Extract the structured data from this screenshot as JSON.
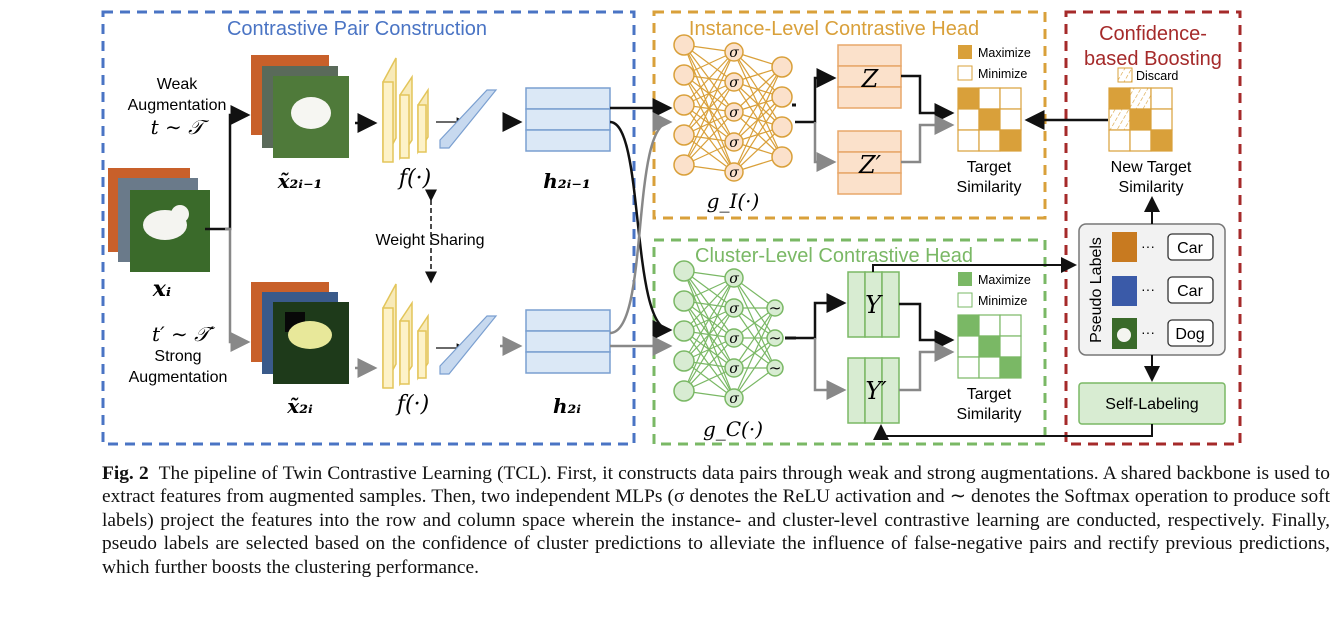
{
  "figure": {
    "sections": {
      "pair": "Contrastive Pair Construction",
      "instance": "Instance-Level Contrastive Head",
      "cluster": "Cluster-Level Contrastive Head",
      "boost_line1": "Confidence-",
      "boost_line2": "based Boosting"
    },
    "colors": {
      "pair": "#4a74c4",
      "instance": "#d9a03a",
      "cluster": "#7ab865",
      "boost": "#a52a2a",
      "encoder": "#f8eab8",
      "feature": "#dbe8f6",
      "inst_fill": "#fbe1cb",
      "clu_fill": "#d8ecd2"
    },
    "labels": {
      "weak1": "Weak",
      "weak2": "Augmentation",
      "weak_t": "t ∼ 𝒯",
      "strong_t": "t′ ∼ 𝒯′",
      "strong1": "Strong",
      "strong2": "Augmentation",
      "xi": "xᵢ",
      "x_weak": "x̃₂ᵢ₋₁",
      "x_strong": "x̃₂ᵢ",
      "f": "f(·)",
      "h_weak": "h₂ᵢ₋₁",
      "h_strong": "h₂ᵢ",
      "weight_sharing": "Weight Sharing",
      "gI": "g_I(·)",
      "gC": "g_C(·)",
      "Z": "Z",
      "Zp": "Z′",
      "Y": "Y",
      "Yp": "Y′",
      "sigma": "σ",
      "softmax": "∼",
      "maximize": "Maximize",
      "minimize": "Minimize",
      "discard": "Discard",
      "target1": "Target",
      "target2": "Similarity",
      "new_target1": "New Target",
      "new_target2": "Similarity",
      "pseudo_labels": "Pseudo Labels",
      "pseudo": [
        "Car",
        "Car",
        "Dog"
      ],
      "self_labeling": "Self-Labeling"
    }
  },
  "caption": {
    "fig": "Fig. 2",
    "text": "The pipeline of Twin Contrastive Learning (TCL). First, it constructs data pairs through weak and strong augmentations. A shared backbone is used to extract features from augmented samples. Then, two independent MLPs (σ denotes the ReLU activation and ∼ denotes the Softmax operation to produce soft labels) project the features into the row and column space wherein the instance- and cluster-level contrastive learning are conducted, respectively. Finally, pseudo labels are selected based on the confidence of cluster predictions to alleviate the influence of false-negative pairs and rectify previous predictions, which further boosts the clustering performance."
  }
}
